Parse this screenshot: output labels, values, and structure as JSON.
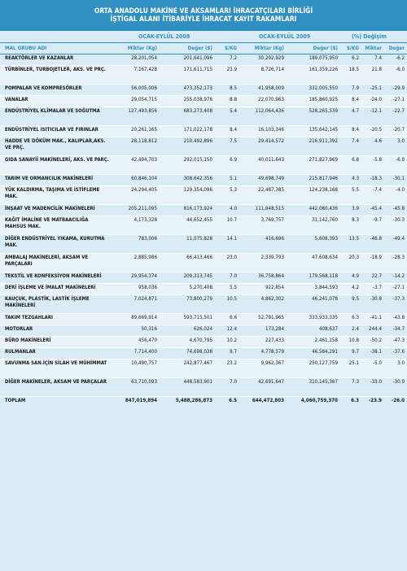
{
  "title_line1": "ORTA ANADOLU MAKİNE VE AKSAMLARI İHRACATÇILARI BİRLİĞİ",
  "title_line2": "İŞTİGAL ALANI İTİBARİYLE İHRACAT KAYIT RAKAMLARI",
  "periods": {
    "p1": "OCAK-EYLÜL  2008",
    "p2": "OCAK-EYLÜL 2009",
    "p3": "(%) Değişim"
  },
  "headers": {
    "name": "MAL GRUBU ADI",
    "kg1": "Miktar (Kg)",
    "usd1": "Değer ($)",
    "skg1": "$/KG",
    "kg2": "Miktar (Kg)",
    "usd2": "Değer ($)",
    "skg2": "$/KG",
    "chg_kg": "Miktar",
    "chg_usd": "Değer"
  },
  "rows": [
    [
      "REAKTÖRLER VE KAZANLAR",
      "28,201,054",
      "201,641,096",
      "7.2",
      "30,292,929",
      "189,075,950",
      "6.2",
      "7.4",
      "-6.2"
    ],
    [
      "TÜRBİNLER, TURBOJETLER, AKS. VE PRÇ.",
      "7,167,428",
      "171,611,715",
      "23.9",
      "8,726,714",
      "161,359,226",
      "18.5",
      "21.8",
      "-6.0"
    ],
    [
      "POMPALAR VE KOMPRESÖRLER",
      "56,005,006",
      "473,352,173",
      "8.5",
      "41,958,009",
      "332,005,550",
      "7.9",
      "-25.1",
      "-29.9"
    ],
    [
      "VANALAR",
      "29,054,715",
      "255,038,976",
      "8.8",
      "22,070,963",
      "185,860,925",
      "8.4",
      "-24.0",
      "-27.1"
    ],
    [
      "ENDÜSTRİYEL KLİMALAR VE SOĞUTMA",
      "127,493,856",
      "683,273,408",
      "5.4",
      "112,064,436",
      "528,265,539",
      "4.7",
      "-12.1",
      "-22.7"
    ],
    [
      "ENDÜSTRİYEL ISITICILAR VE FIRINLAR",
      "20,261,165",
      "171,022,178",
      "8.4",
      "16,103,346",
      "135,642,145",
      "8.4",
      "-20.5",
      "-20.7"
    ],
    [
      "HADDE VE DÖKÜM MAK., KALIPLAR,AKS. VE PRÇ.",
      "28,118,812",
      "210,492,896",
      "7.5",
      "29,414,572",
      "216,911,392",
      "7.4",
      "4.6",
      "3.0"
    ],
    [
      "GIDA SANAYİİ MAKİNELERİ, AKS. VE PARÇ.",
      "42,494,703",
      "292,015,150",
      "6.9",
      "40,011,643",
      "271,827,969",
      "6.8",
      "-5.8",
      "-6.9"
    ],
    [
      "TARIM VE ORMANCILIK MAKİNELERİ",
      "60,846,104",
      "308,642,356",
      "5.1",
      "49,698,749",
      "215,817,946",
      "4.3",
      "-18.3",
      "-30.1"
    ],
    [
      "YÜK KALDIRMA, TAŞIMA VE İSTİFLEME MAK.",
      "24,294,405",
      "129,354,096",
      "5.3",
      "22,487,385",
      "124,238,168",
      "5.5",
      "-7.4",
      "-4.0"
    ],
    [
      "İNŞAAT VE MADENCİLİK MAKİNELERİ",
      "205,211,095",
      "816,173,924",
      "4.0",
      "111,948,515",
      "442,080,436",
      "3.9",
      "-45.4",
      "-45.8"
    ],
    [
      "KAĞIT İMALİNE VE MATBAACILIĞA MAHSUS MAK.",
      "4,173,328",
      "44,652,455",
      "10.7",
      "3,769,757",
      "31,142,760",
      "8.3",
      "-9.7",
      "-30.3"
    ],
    [
      "DİĞER ENDÜSTRİYEL YIKAMA, KURUTMA MAK.",
      "783,006",
      "11,075,828",
      "14.1",
      "416,696",
      "5,608,393",
      "13.5",
      "-46.8",
      "-49.4"
    ],
    [
      "AMBALAJ MAKİNELERİ, AKSAM VE PARÇALARI",
      "2,885,986",
      "66,413,466",
      "23.0",
      "2,339,793",
      "47,608,634",
      "20.3",
      "-18.9",
      "-28.3"
    ],
    [
      "TEKSTİL VE KONFEKSİYON MAKİNELERİ",
      "29,954,374",
      "209,313,745",
      "7.0",
      "36,758,864",
      "179,568,118",
      "4.9",
      "22.7",
      "-14.2"
    ],
    [
      "DERİ İŞLEME VE İMALAT MAKİNELERİ",
      "958,036",
      "5,270,408",
      "5.5",
      "922,854",
      "3,844,593",
      "4.2",
      "-3.7",
      "-27.1"
    ],
    [
      "KAUÇUK, PLASTİK, LASTİK İŞLEME MAKİNELERİ",
      "7,024,871",
      "73,800,279",
      "10.5",
      "4,862,302",
      "46,241,078",
      "9.5",
      "-30.8",
      "-37.3"
    ],
    [
      "TAKIM TEZGAHLARI",
      "89,669,914",
      "593,715,501",
      "6.6",
      "52,791,965",
      "333,933,335",
      "6.3",
      "-41.1",
      "-43.8"
    ],
    [
      "MOTORLAR",
      "50,316",
      "626,024",
      "12.4",
      "173,284",
      "408,637",
      "2.4",
      "244.4",
      "-34.7"
    ],
    [
      "BÜRO MAKİNELERİ",
      "456,470",
      "4,670,795",
      "10.2",
      "227,433",
      "2,461,158",
      "10.8",
      "-50.2",
      "-47.3"
    ],
    [
      "RULMANLAR",
      "7,714,400",
      "74,698,038",
      "9.7",
      "4,778,579",
      "46,584,291",
      "9.7",
      "-38.1",
      "-37.6"
    ],
    [
      "SAVUNMA SAN.İÇİN SİLAH VE MÜHİMMAT",
      "10,490,757",
      "242,877,467",
      "23.2",
      "9,962,367",
      "250,127,759",
      "25.1",
      "-5.0",
      "3.0"
    ],
    [
      "DİĞER MAKİNELER, AKSAM VE PARÇALAR",
      "63,710,093",
      "448,583,901",
      "7.0",
      "42,691,647",
      "310,145,367",
      "7.3",
      "-33.0",
      "-30.9"
    ]
  ],
  "row_heights": [
    12,
    21,
    12,
    12,
    21,
    12,
    21,
    21,
    12,
    21,
    12,
    21,
    21,
    21,
    12,
    12,
    21,
    12,
    12,
    12,
    12,
    21,
    21
  ],
  "total": [
    "TOPLAM",
    "847,019,894",
    "5,488,286,873",
    "6.5",
    "644,472,803",
    "4,060,759,370",
    "6.3",
    "-23.9",
    "-26.0"
  ]
}
